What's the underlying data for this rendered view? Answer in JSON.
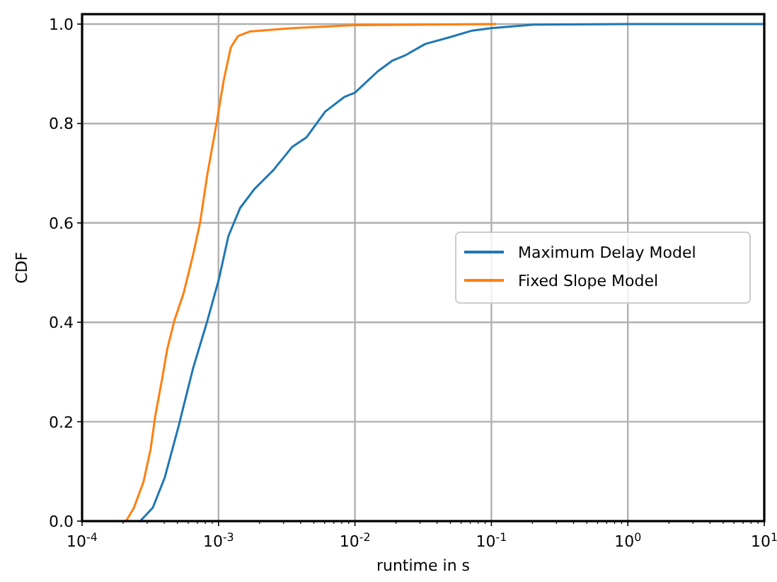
{
  "chart_data": {
    "type": "line",
    "xlabel": "runtime in s",
    "ylabel": "CDF",
    "log": "x",
    "xlim": [
      0.0001,
      10
    ],
    "ylim": [
      0,
      1.02
    ],
    "xticks": [
      {
        "value": 0.0001,
        "label": "10$^{-4}$"
      },
      {
        "value": 0.001,
        "label": "10$^{-3}$"
      },
      {
        "value": 0.01,
        "label": "10$^{-2}$"
      },
      {
        "value": 0.1,
        "label": "10$^{-1}$"
      },
      {
        "value": 1,
        "label": "10$^{0}$"
      },
      {
        "value": 10,
        "label": "10$^{1}$"
      },
      {
        "value": 0.0002,
        "label": null
      },
      {
        "value": 0.0003,
        "label": null
      },
      {
        "value": 0.0004,
        "label": null
      },
      {
        "value": 0.0005,
        "label": null
      },
      {
        "value": 0.0006,
        "label": null
      },
      {
        "value": 0.0007,
        "label": null
      },
      {
        "value": 0.0008,
        "label": null
      },
      {
        "value": 0.0009,
        "label": null
      },
      {
        "value": 0.002,
        "label": null
      },
      {
        "value": 0.003,
        "label": null
      },
      {
        "value": 0.004,
        "label": null
      },
      {
        "value": 0.005,
        "label": null
      },
      {
        "value": 0.006,
        "label": null
      },
      {
        "value": 0.007,
        "label": null
      },
      {
        "value": 0.008,
        "label": null
      },
      {
        "value": 0.009,
        "label": null
      },
      {
        "value": 0.02,
        "label": null
      },
      {
        "value": 0.03,
        "label": null
      },
      {
        "value": 0.04,
        "label": null
      },
      {
        "value": 0.05,
        "label": null
      },
      {
        "value": 0.06,
        "label": null
      },
      {
        "value": 0.07,
        "label": null
      },
      {
        "value": 0.08,
        "label": null
      },
      {
        "value": 0.09,
        "label": null
      },
      {
        "value": 0.2,
        "label": null
      },
      {
        "value": 0.3,
        "label": null
      },
      {
        "value": 0.4,
        "label": null
      },
      {
        "value": 0.5,
        "label": null
      },
      {
        "value": 0.6,
        "label": null
      },
      {
        "value": 0.7,
        "label": null
      },
      {
        "value": 0.8,
        "label": null
      },
      {
        "value": 0.9,
        "label": null
      },
      {
        "value": 2,
        "label": null
      },
      {
        "value": 3,
        "label": null
      },
      {
        "value": 4,
        "label": null
      },
      {
        "value": 5,
        "label": null
      },
      {
        "value": 6,
        "label": null
      },
      {
        "value": 7,
        "label": null
      },
      {
        "value": 8,
        "label": null
      },
      {
        "value": 9,
        "label": null
      }
    ],
    "yticks": [
      {
        "value": 0,
        "label": "0.0"
      },
      {
        "value": 0.2,
        "label": "0.2"
      },
      {
        "value": 0.4,
        "label": "0.4"
      },
      {
        "value": 0.6,
        "label": "0.6"
      },
      {
        "value": 0.8,
        "label": "0.8"
      },
      {
        "value": 1,
        "label": "1.0"
      }
    ],
    "grid": true,
    "legend": "right",
    "marker": "none",
    "line_style": "solid",
    "series": [
      {
        "name": "Maximum Delay Model",
        "color": "#1f77b4",
        "x": [
          0.000267,
          0.00033,
          0.000404,
          0.000512,
          0.00065,
          0.000826,
          0.001007,
          0.00118,
          0.00144,
          0.00183,
          0.00252,
          0.00347,
          0.00441,
          0.00605,
          0.00832,
          0.01,
          0.0147,
          0.0187,
          0.0237,
          0.0327,
          0.0486,
          0.0726,
          0.1,
          0.205,
          1,
          10
        ],
        "values": [
          0,
          0.027,
          0.088,
          0.193,
          0.307,
          0.402,
          0.487,
          0.573,
          0.63,
          0.668,
          0.706,
          0.753,
          0.772,
          0.824,
          0.853,
          0.862,
          0.905,
          0.926,
          0.938,
          0.96,
          0.973,
          0.987,
          0.992,
          0.999,
          1,
          1
        ]
      },
      {
        "name": "Fixed Slope Model",
        "color": "#ff7f0e",
        "x": [
          0.00021,
          0.00024,
          0.000282,
          0.000318,
          0.000344,
          0.000387,
          0.00042,
          0.000473,
          0.000555,
          0.00065,
          0.000733,
          0.000826,
          0.000968,
          0.00109,
          0.00123,
          0.00139,
          0.00169,
          0.00347,
          0.01,
          0.107
        ],
        "values": [
          0,
          0.027,
          0.079,
          0.145,
          0.212,
          0.288,
          0.345,
          0.402,
          0.459,
          0.535,
          0.601,
          0.696,
          0.801,
          0.886,
          0.953,
          0.976,
          0.985,
          0.992,
          0.998,
          1
        ]
      }
    ]
  }
}
